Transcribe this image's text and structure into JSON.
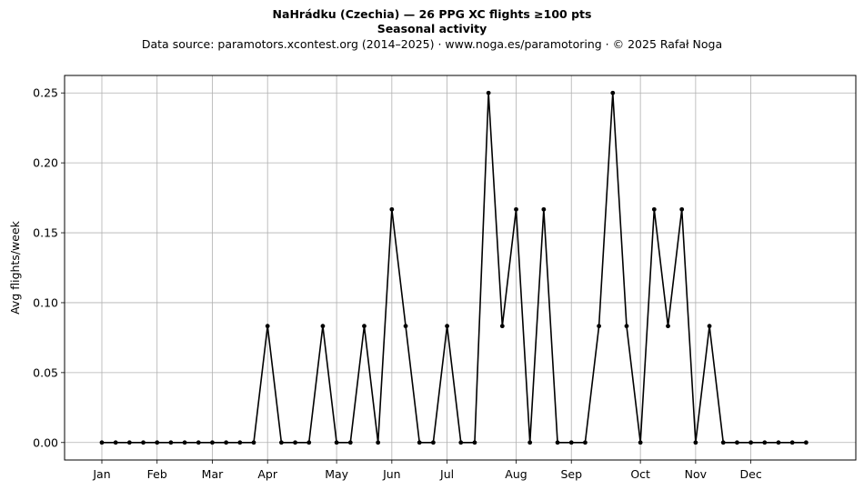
{
  "chart_data": {
    "type": "line",
    "title": "NaHrádku (Czechia)  —  26 PPG XC flights ≥100 pts",
    "subtitle": "Seasonal activity",
    "caption": "Data source: paramotors.xcontest.org (2014–2025)  ·  www.noga.es/paramotoring  ·  © 2025 Rafał Noga",
    "xlabel": "",
    "ylabel": "Avg flights/week",
    "xlim": [
      -2.7,
      54.6
    ],
    "ylim": [
      -0.0125,
      0.2625
    ],
    "grid": true,
    "x_ticks": [
      {
        "label": "Jan",
        "value": 0
      },
      {
        "label": "Feb",
        "value": 4
      },
      {
        "label": "Mar",
        "value": 8
      },
      {
        "label": "Apr",
        "value": 12
      },
      {
        "label": "May",
        "value": 17
      },
      {
        "label": "Jun",
        "value": 21
      },
      {
        "label": "Jul",
        "value": 25
      },
      {
        "label": "Aug",
        "value": 30
      },
      {
        "label": "Sep",
        "value": 34
      },
      {
        "label": "Oct",
        "value": 39
      },
      {
        "label": "Nov",
        "value": 43
      },
      {
        "label": "Dec",
        "value": 47
      }
    ],
    "y_ticks": [
      "0.00",
      "0.05",
      "0.10",
      "0.15",
      "0.20",
      "0.25"
    ],
    "y_tick_values": [
      0,
      0.05,
      0.1,
      0.15,
      0.2,
      0.25
    ],
    "series": [
      {
        "color": "#000000",
        "x": [
          0,
          1,
          2,
          3,
          4,
          5,
          6,
          7,
          8,
          9,
          10,
          11,
          12,
          13,
          14,
          15,
          16,
          17,
          18,
          19,
          20,
          21,
          22,
          23,
          24,
          25,
          26,
          27,
          28,
          29,
          30,
          31,
          32,
          33,
          34,
          35,
          36,
          37,
          38,
          39,
          40,
          41,
          42,
          43,
          44,
          45,
          46,
          47,
          48,
          49,
          50,
          51
        ],
        "values": [
          0,
          0,
          0,
          0,
          0,
          0,
          0,
          0,
          0,
          0,
          0,
          0,
          0.0833,
          0,
          0,
          0,
          0.0833,
          0,
          0,
          0.0833,
          0,
          0.1667,
          0.0833,
          0,
          0,
          0.0833,
          0,
          0,
          0.25,
          0.0833,
          0.1667,
          0,
          0.1667,
          0,
          0,
          0,
          0.0833,
          0.25,
          0.0833,
          0,
          0.1667,
          0.0833,
          0.1667,
          0,
          0.0833,
          0,
          0,
          0,
          0,
          0,
          0,
          0
        ]
      }
    ]
  }
}
